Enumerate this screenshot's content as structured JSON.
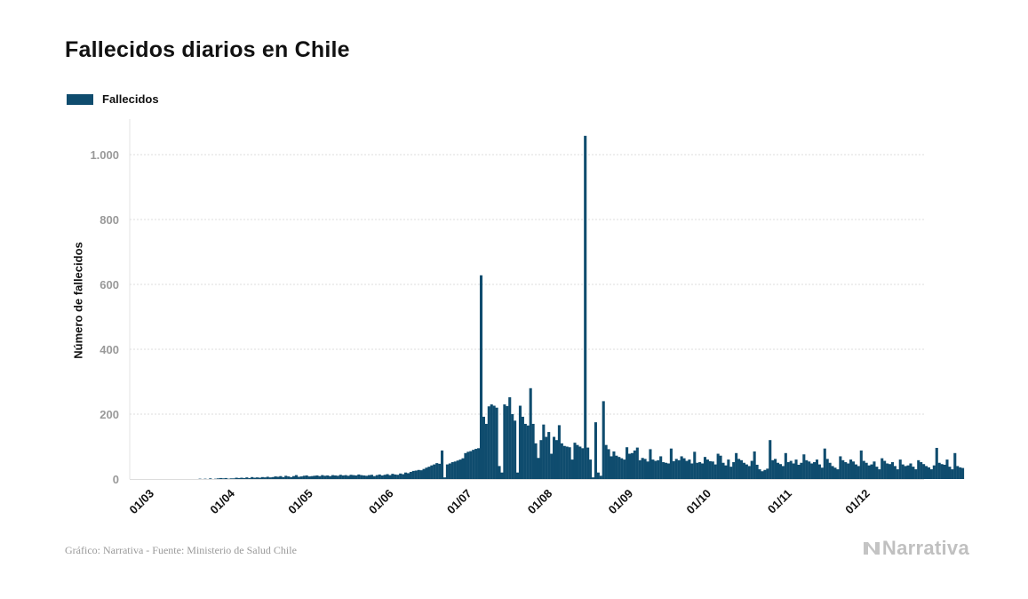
{
  "header": {
    "title": "Fallecidos diarios en Chile"
  },
  "legend": {
    "label": "Fallecidos"
  },
  "footer": {
    "source": "Gráfico: Narrativa - Fuente: Ministerio de Salud Chile",
    "brand": "Narrativa"
  },
  "colors": {
    "bar": "#0f4c6e",
    "grid": "#dddddd",
    "tick_text": "#999999"
  },
  "chart_data": {
    "type": "bar",
    "title": "Fallecidos diarios en Chile",
    "ylabel": "Número de fallecidos",
    "xlabel": "",
    "ylim": [
      0,
      1100
    ],
    "y_ticks": [
      0,
      200,
      400,
      600,
      800,
      1000
    ],
    "y_tick_labels": [
      "0",
      "200",
      "400",
      "600",
      "800",
      "1.000"
    ],
    "x_ticks": [
      "01/03",
      "01/04",
      "01/05",
      "01/06",
      "01/07",
      "01/08",
      "01/09",
      "01/10",
      "01/11",
      "01/12"
    ],
    "grid": true,
    "legend_position": "top-left",
    "series": [
      {
        "name": "Fallecidos",
        "color": "#0f4c6e",
        "start_date": "2020-03-01",
        "values": [
          0,
          0,
          0,
          0,
          0,
          0,
          0,
          0,
          0,
          0,
          0,
          0,
          0,
          0,
          0,
          0,
          0,
          0,
          0,
          0,
          0,
          1,
          0,
          1,
          0,
          2,
          0,
          1,
          2,
          3,
          2,
          3,
          1,
          2,
          2,
          4,
          3,
          4,
          3,
          5,
          3,
          6,
          4,
          5,
          4,
          6,
          5,
          7,
          5,
          6,
          8,
          7,
          9,
          6,
          10,
          8,
          6,
          9,
          12,
          7,
          8,
          10,
          11,
          8,
          9,
          10,
          11,
          9,
          12,
          10,
          11,
          9,
          12,
          11,
          10,
          13,
          11,
          12,
          10,
          13,
          12,
          11,
          14,
          12,
          11,
          10,
          12,
          13,
          9,
          12,
          14,
          11,
          13,
          15,
          12,
          16,
          14,
          13,
          17,
          15,
          20,
          18,
          22,
          25,
          26,
          28,
          27,
          31,
          35,
          38,
          42,
          45,
          49,
          47,
          88,
          5,
          45,
          48,
          52,
          54,
          57,
          60,
          64,
          80,
          84,
          86,
          90,
          93,
          95,
          628,
          192,
          170,
          224,
          230,
          226,
          220,
          40,
          20,
          230,
          225,
          252,
          200,
          180,
          20,
          226,
          192,
          170,
          165,
          280,
          170,
          110,
          65,
          120,
          168,
          130,
          145,
          78,
          130,
          120,
          166,
          110,
          102,
          100,
          98,
          60,
          112,
          105,
          100,
          95,
          1058,
          97,
          60,
          5,
          175,
          20,
          10,
          240,
          105,
          92,
          70,
          85,
          72,
          68,
          64,
          60,
          98,
          78,
          80,
          88,
          97,
          58,
          65,
          62,
          54,
          92,
          60,
          56,
          58,
          70,
          52,
          50,
          48,
          94,
          55,
          62,
          58,
          70,
          64,
          56,
          60,
          48,
          84,
          50,
          52,
          48,
          68,
          60,
          55,
          54,
          45,
          78,
          72,
          50,
          42,
          60,
          38,
          52,
          80,
          62,
          58,
          50,
          45,
          40,
          56,
          85,
          44,
          30,
          24,
          28,
          32,
          120,
          58,
          62,
          50,
          46,
          40,
          80,
          52,
          56,
          48,
          60,
          44,
          50,
          76,
          58,
          54,
          48,
          52,
          60,
          45,
          35,
          94,
          62,
          50,
          40,
          35,
          30,
          70,
          58,
          52,
          48,
          60,
          54,
          45,
          40,
          88,
          56,
          50,
          42,
          45,
          54,
          38,
          30,
          64,
          56,
          48,
          46,
          52,
          40,
          30,
          60,
          45,
          40,
          42,
          48,
          38,
          30,
          58,
          52,
          46,
          40,
          36,
          30,
          42,
          96,
          50,
          46,
          44,
          60,
          38,
          30,
          80,
          40,
          36,
          34
        ]
      }
    ]
  }
}
